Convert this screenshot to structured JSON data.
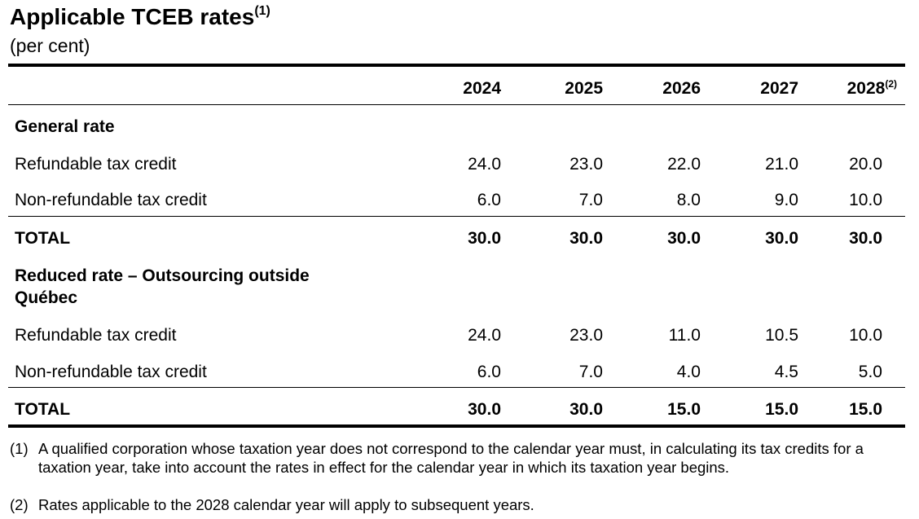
{
  "title": "Applicable TCEB rates",
  "title_note": "(1)",
  "subtitle": "(per cent)",
  "columns": [
    "2024",
    "2025",
    "2026",
    "2027",
    "2028"
  ],
  "last_column_note": "(2)",
  "sections": [
    {
      "heading_line1": "General rate",
      "rows": [
        {
          "label": "Refundable tax credit",
          "values": [
            "24.0",
            "23.0",
            "22.0",
            "21.0",
            "20.0"
          ]
        },
        {
          "label": "Non-refundable tax credit",
          "values": [
            "6.0",
            "7.0",
            "8.0",
            "9.0",
            "10.0"
          ]
        }
      ],
      "total": {
        "label": "TOTAL",
        "values": [
          "30.0",
          "30.0",
          "30.0",
          "30.0",
          "30.0"
        ]
      }
    },
    {
      "heading_line1": "Reduced rate – Outsourcing outside",
      "heading_line2": "Québec",
      "rows": [
        {
          "label": "Refundable tax credit",
          "values": [
            "24.0",
            "23.0",
            "11.0",
            "10.5",
            "10.0"
          ]
        },
        {
          "label": "Non-refundable tax credit",
          "values": [
            "6.0",
            "7.0",
            "4.0",
            "4.5",
            "5.0"
          ]
        }
      ],
      "total": {
        "label": "TOTAL",
        "values": [
          "30.0",
          "30.0",
          "15.0",
          "15.0",
          "15.0"
        ]
      }
    }
  ],
  "footnotes": [
    {
      "marker": "(1)",
      "text": "A qualified corporation whose taxation year does not correspond to the calendar year must, in calculating its tax credits for a taxation year, take into account the rates in effect for the calendar year in which its taxation year begins."
    },
    {
      "marker": "(2)",
      "text": "Rates applicable to the 2028 calendar year will apply to subsequent years."
    }
  ]
}
